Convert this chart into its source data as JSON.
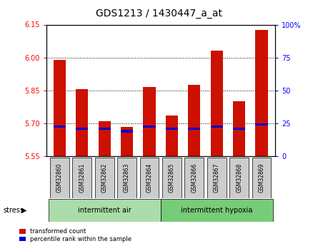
{
  "title": "GDS1213 / 1430447_a_at",
  "samples": [
    "GSM32860",
    "GSM32861",
    "GSM32862",
    "GSM32863",
    "GSM32864",
    "GSM32865",
    "GSM32866",
    "GSM32867",
    "GSM32868",
    "GSM32869"
  ],
  "red_values": [
    5.99,
    5.855,
    5.71,
    5.685,
    5.865,
    5.735,
    5.875,
    6.03,
    5.8,
    6.125
  ],
  "blue_values": [
    5.685,
    5.675,
    5.675,
    5.665,
    5.685,
    5.675,
    5.675,
    5.685,
    5.675,
    5.695
  ],
  "baseline": 5.55,
  "ylim_left": [
    5.55,
    6.15
  ],
  "yticks_left": [
    5.55,
    5.7,
    5.85,
    6.0,
    6.15
  ],
  "ylim_right": [
    0,
    100
  ],
  "yticks_right": [
    0,
    25,
    50,
    75,
    100
  ],
  "ytick_labels_right": [
    "0",
    "25",
    "50",
    "75",
    "100%"
  ],
  "grid_lines": [
    5.7,
    5.85,
    6.0
  ],
  "group1_label": "intermittent air",
  "group2_label": "intermittent hypoxia",
  "group1_indices": [
    0,
    1,
    2,
    3,
    4
  ],
  "group2_indices": [
    5,
    6,
    7,
    8,
    9
  ],
  "stress_label": "stress",
  "legend_red": "transformed count",
  "legend_blue": "percentile rank within the sample",
  "bar_color_red": "#cc1100",
  "bar_color_blue": "#0000cc",
  "group1_color": "#aaddaa",
  "group2_color": "#77cc77",
  "sample_box_color": "#cccccc",
  "bar_width": 0.55,
  "title_fontsize": 10,
  "tick_fontsize": 7,
  "label_fontsize": 7,
  "bg_color": "#ffffff"
}
